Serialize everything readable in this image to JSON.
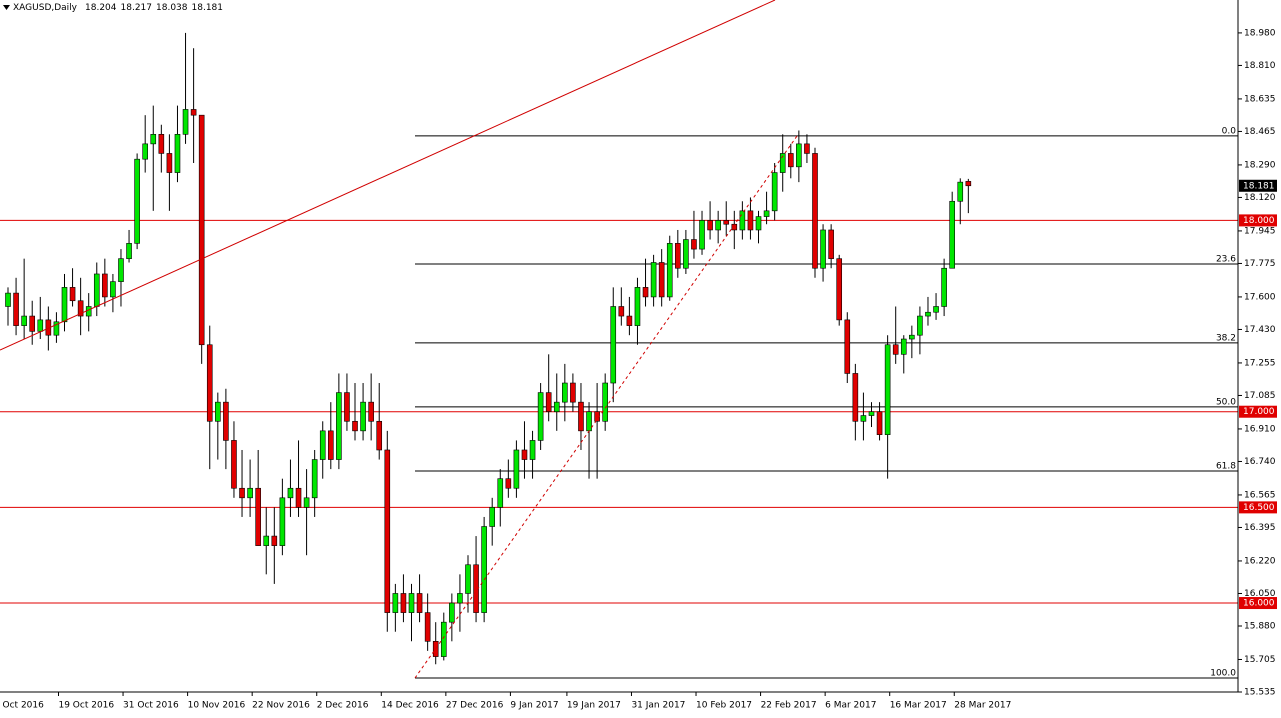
{
  "chart_data": {
    "type": "candlestick",
    "symbol": "XAGUSD,Daily",
    "ylim": [
      15.535,
      19.152
    ],
    "yticks": [
      {
        "value": 18.98,
        "label": "18.980"
      },
      {
        "value": 18.81,
        "label": "18.810"
      },
      {
        "value": 18.635,
        "label": "18.635"
      },
      {
        "value": 18.465,
        "label": "18.465"
      },
      {
        "value": 18.29,
        "label": "18.290"
      },
      {
        "value": 18.12,
        "label": "18.120"
      },
      {
        "value": 17.945,
        "label": "17.945"
      },
      {
        "value": 17.775,
        "label": "17.775"
      },
      {
        "value": 17.6,
        "label": "17.600"
      },
      {
        "value": 17.43,
        "label": "17.430"
      },
      {
        "value": 17.255,
        "label": "17.255"
      },
      {
        "value": 17.085,
        "label": "17.085"
      },
      {
        "value": 16.91,
        "label": "16.910"
      },
      {
        "value": 16.74,
        "label": "16.740"
      },
      {
        "value": 16.565,
        "label": "16.565"
      },
      {
        "value": 16.395,
        "label": "16.395"
      },
      {
        "value": 16.22,
        "label": "16.220"
      },
      {
        "value": 16.05,
        "label": "16.050"
      },
      {
        "value": 15.88,
        "label": "15.880"
      },
      {
        "value": 15.705,
        "label": "15.705"
      },
      {
        "value": 15.535,
        "label": "15.535"
      }
    ],
    "xticks": [
      {
        "value": -1,
        "label": "7 Oct 2016"
      },
      {
        "value": 7,
        "label": "19 Oct 2016"
      },
      {
        "value": 15,
        "label": "31 Oct 2016"
      },
      {
        "value": 23,
        "label": "10 Nov 2016"
      },
      {
        "value": 31,
        "label": "22 Nov 2016"
      },
      {
        "value": 39,
        "label": "2 Dec 2016"
      },
      {
        "value": 47,
        "label": "14 Dec 2016"
      },
      {
        "value": 55,
        "label": "27 Dec 2016"
      },
      {
        "value": 63,
        "label": "9 Jan 2017"
      },
      {
        "value": 70,
        "label": "19 Jan 2017"
      },
      {
        "value": 78,
        "label": "31 Jan 2017"
      },
      {
        "value": 86,
        "label": "10 Feb 2017"
      },
      {
        "value": 94,
        "label": "22 Feb 2017"
      },
      {
        "value": 102,
        "label": "6 Mar 2017"
      },
      {
        "value": 110,
        "label": "16 Mar 2017"
      },
      {
        "value": 118,
        "label": "28 Mar 2017"
      }
    ],
    "up_color": "#00e600",
    "down_color": "#e00000",
    "levels": [
      {
        "value": 18,
        "label": "18.000"
      },
      {
        "value": 17,
        "label": "17.000"
      },
      {
        "value": 16.5,
        "label": "16.500"
      },
      {
        "value": 16,
        "label": "16.000"
      }
    ],
    "fib_levels": [
      {
        "level": {
          "value": 0,
          "label": "0.0"
        },
        "price": 18.442
      },
      {
        "level": {
          "value": 23.6,
          "label": "23.6"
        },
        "price": 17.772
      },
      {
        "level": {
          "value": 38.2,
          "label": "38.2"
        },
        "price": 17.36
      },
      {
        "level": {
          "value": 50,
          "label": "50.0"
        },
        "price": 17.025
      },
      {
        "level": {
          "value": 61.8,
          "label": "61.8"
        },
        "price": 16.69
      },
      {
        "level": {
          "value": 100,
          "label": "100.0"
        },
        "price": 15.608
      }
    ],
    "ohlc": [
      [
        17.55,
        17.65,
        17.45,
        17.62
      ],
      [
        17.62,
        17.7,
        17.4,
        17.45
      ],
      [
        17.45,
        17.8,
        17.38,
        17.5
      ],
      [
        17.5,
        17.58,
        17.35,
        17.42
      ],
      [
        17.42,
        17.6,
        17.38,
        17.48
      ],
      [
        17.48,
        17.55,
        17.32,
        17.4
      ],
      [
        17.4,
        17.52,
        17.36,
        17.47
      ],
      [
        17.47,
        17.72,
        17.42,
        17.65
      ],
      [
        17.65,
        17.75,
        17.55,
        17.58
      ],
      [
        17.58,
        17.7,
        17.4,
        17.5
      ],
      [
        17.5,
        17.62,
        17.42,
        17.55
      ],
      [
        17.55,
        17.78,
        17.5,
        17.72
      ],
      [
        17.72,
        17.8,
        17.55,
        17.6
      ],
      [
        17.6,
        17.72,
        17.52,
        17.68
      ],
      [
        17.68,
        17.85,
        17.55,
        17.8
      ],
      [
        17.8,
        17.95,
        17.78,
        17.88
      ],
      [
        17.88,
        18.35,
        17.85,
        18.32
      ],
      [
        18.32,
        18.55,
        18.25,
        18.4
      ],
      [
        18.4,
        18.6,
        18.05,
        18.45
      ],
      [
        18.45,
        18.5,
        18.25,
        18.35
      ],
      [
        18.35,
        18.45,
        18.05,
        18.25
      ],
      [
        18.25,
        18.6,
        18.2,
        18.45
      ],
      [
        18.45,
        18.98,
        18.4,
        18.58
      ],
      [
        18.58,
        18.9,
        18.3,
        18.55
      ],
      [
        18.55,
        18.55,
        17.25,
        17.35
      ],
      [
        17.35,
        17.45,
        16.7,
        16.95
      ],
      [
        16.95,
        17.1,
        16.75,
        17.05
      ],
      [
        17.05,
        17.12,
        16.7,
        16.85
      ],
      [
        16.85,
        16.95,
        16.55,
        16.6
      ],
      [
        16.6,
        16.8,
        16.45,
        16.55
      ],
      [
        16.55,
        16.75,
        16.45,
        16.6
      ],
      [
        16.6,
        16.8,
        16.3,
        16.3
      ],
      [
        16.3,
        16.5,
        16.15,
        16.35
      ],
      [
        16.35,
        16.5,
        16.1,
        16.3
      ],
      [
        16.3,
        16.65,
        16.25,
        16.55
      ],
      [
        16.55,
        16.75,
        16.45,
        16.6
      ],
      [
        16.6,
        16.85,
        16.45,
        16.5
      ],
      [
        16.5,
        16.7,
        16.25,
        16.55
      ],
      [
        16.55,
        16.8,
        16.45,
        16.75
      ],
      [
        16.75,
        16.95,
        16.65,
        16.9
      ],
      [
        16.9,
        17.05,
        16.7,
        16.75
      ],
      [
        16.75,
        17.2,
        16.7,
        17.1
      ],
      [
        17.1,
        17.2,
        16.9,
        16.95
      ],
      [
        16.95,
        17.15,
        16.85,
        16.9
      ],
      [
        16.9,
        17.15,
        16.85,
        17.05
      ],
      [
        17.05,
        17.2,
        16.85,
        16.95
      ],
      [
        16.95,
        17.15,
        16.75,
        16.8
      ],
      [
        16.8,
        16.9,
        15.85,
        15.95
      ],
      [
        15.95,
        16.1,
        15.85,
        16.05
      ],
      [
        16.05,
        16.15,
        15.9,
        15.95
      ],
      [
        15.95,
        16.1,
        15.8,
        16.05
      ],
      [
        16.05,
        16.15,
        15.9,
        15.95
      ],
      [
        15.95,
        16.05,
        15.75,
        15.8
      ],
      [
        15.8,
        15.9,
        15.68,
        15.72
      ],
      [
        15.72,
        15.95,
        15.7,
        15.9
      ],
      [
        15.9,
        16.05,
        15.8,
        16
      ],
      [
        16,
        16.15,
        15.85,
        16.05
      ],
      [
        16.05,
        16.25,
        15.95,
        16.2
      ],
      [
        16.2,
        16.35,
        15.9,
        15.95
      ],
      [
        15.95,
        16.45,
        15.9,
        16.4
      ],
      [
        16.4,
        16.55,
        16.3,
        16.5
      ],
      [
        16.5,
        16.7,
        16.4,
        16.65
      ],
      [
        16.65,
        16.75,
        16.55,
        16.6
      ],
      [
        16.6,
        16.85,
        16.55,
        16.8
      ],
      [
        16.8,
        16.95,
        16.65,
        16.75
      ],
      [
        16.75,
        16.9,
        16.65,
        16.85
      ],
      [
        16.85,
        17.15,
        16.8,
        17.1
      ],
      [
        17.1,
        17.3,
        16.95,
        17
      ],
      [
        17,
        17.2,
        16.9,
        17.05
      ],
      [
        17.05,
        17.25,
        16.95,
        17.15
      ],
      [
        17.15,
        17.2,
        17,
        17.05
      ],
      [
        17.05,
        17.15,
        16.8,
        16.9
      ],
      [
        16.9,
        17.05,
        16.65,
        17
      ],
      [
        17,
        17.15,
        16.65,
        16.95
      ],
      [
        16.95,
        17.2,
        16.9,
        17.15
      ],
      [
        17.15,
        17.65,
        17.05,
        17.55
      ],
      [
        17.55,
        17.65,
        17.45,
        17.5
      ],
      [
        17.5,
        17.6,
        17.4,
        17.45
      ],
      [
        17.45,
        17.7,
        17.35,
        17.65
      ],
      [
        17.65,
        17.8,
        17.55,
        17.6
      ],
      [
        17.6,
        17.82,
        17.55,
        17.78
      ],
      [
        17.78,
        17.85,
        17.55,
        17.6
      ],
      [
        17.6,
        17.92,
        17.58,
        17.88
      ],
      [
        17.88,
        17.95,
        17.7,
        17.75
      ],
      [
        17.75,
        17.95,
        17.72,
        17.9
      ],
      [
        17.9,
        18.05,
        17.8,
        17.85
      ],
      [
        17.85,
        18.05,
        17.82,
        18
      ],
      [
        18,
        18.1,
        17.9,
        17.95
      ],
      [
        17.95,
        18.05,
        17.88,
        18
      ],
      [
        18,
        18.1,
        17.92,
        17.98
      ],
      [
        17.98,
        18.05,
        17.85,
        17.95
      ],
      [
        17.95,
        18.1,
        17.9,
        18.05
      ],
      [
        18.05,
        18.12,
        17.9,
        17.95
      ],
      [
        17.95,
        18.05,
        17.88,
        18.02
      ],
      [
        18.02,
        18.15,
        17.98,
        18.05
      ],
      [
        18.05,
        18.3,
        18,
        18.25
      ],
      [
        18.25,
        18.45,
        18.15,
        18.35
      ],
      [
        18.35,
        18.4,
        18.22,
        18.28
      ],
      [
        18.28,
        18.47,
        18.2,
        18.4
      ],
      [
        18.4,
        18.45,
        18.3,
        18.35
      ],
      [
        18.35,
        18.38,
        17.7,
        17.75
      ],
      [
        17.75,
        17.98,
        17.68,
        17.95
      ],
      [
        17.95,
        17.98,
        17.75,
        17.8
      ],
      [
        17.8,
        17.82,
        17.45,
        17.48
      ],
      [
        17.48,
        17.52,
        17.15,
        17.2
      ],
      [
        17.2,
        17.25,
        16.85,
        16.95
      ],
      [
        16.95,
        17.1,
        16.85,
        16.98
      ],
      [
        16.98,
        17.05,
        16.92,
        17
      ],
      [
        17,
        17.05,
        16.85,
        16.88
      ],
      [
        16.88,
        17.4,
        16.65,
        17.35
      ],
      [
        17.35,
        17.55,
        17.25,
        17.3
      ],
      [
        17.3,
        17.4,
        17.2,
        17.38
      ],
      [
        17.38,
        17.45,
        17.28,
        17.4
      ],
      [
        17.4,
        17.55,
        17.3,
        17.5
      ],
      [
        17.5,
        17.6,
        17.45,
        17.52
      ],
      [
        17.52,
        17.62,
        17.48,
        17.55
      ],
      [
        17.55,
        17.8,
        17.5,
        17.75
      ],
      [
        17.75,
        18.15,
        17.75,
        18.1
      ],
      [
        18.1,
        18.22,
        17.98,
        18.2
      ],
      [
        18.204,
        18.217,
        18.038,
        18.181
      ]
    ]
  }
}
